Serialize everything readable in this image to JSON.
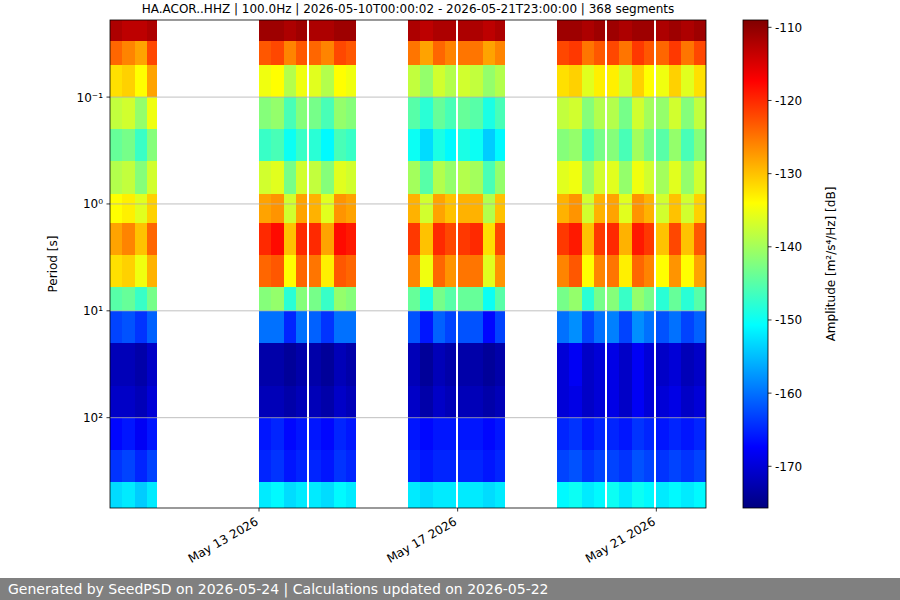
{
  "chart_data": {
    "type": "heatmap",
    "title": "HA.ACOR..HHZ | 100.0Hz | 2026-05-10T00:00:02 - 2026-05-21T23:00:00 | 368 segments",
    "y_label": "Period [s]",
    "footer": "Generated by SeedPSD on 2026-05-24 | Calculations updated on 2026-05-22",
    "log": "y",
    "grid": true,
    "xlim": [
      "2026-05-10T00:00",
      "2026-05-22T00:00"
    ],
    "xticks": [
      {
        "value": "2026-05-13T00:00",
        "label": "May 13 2026"
      },
      {
        "value": "2026-05-17T00:00",
        "label": "May 17 2026"
      },
      {
        "value": "2026-05-21T00:00",
        "label": "May 21 2026"
      }
    ],
    "ylim": [
      0.019,
      700
    ],
    "yticks": [
      {
        "value": 0.1,
        "label": "10⁻¹"
      },
      {
        "value": 1,
        "label": "10⁰"
      },
      {
        "value": 10,
        "label": "10¹"
      },
      {
        "value": 100,
        "label": "10²"
      }
    ],
    "x": [
      "2026-05-10T00:00",
      "2026-05-10T06:00",
      "2026-05-10T12:00",
      "2026-05-10T18:00",
      "2026-05-13T00:00",
      "2026-05-13T06:00",
      "2026-05-13T12:00",
      "2026-05-13T18:00",
      "2026-05-14T00:00",
      "2026-05-14T06:00",
      "2026-05-14T12:00",
      "2026-05-14T18:00",
      "2026-05-16T00:00",
      "2026-05-16T06:00",
      "2026-05-16T12:00",
      "2026-05-16T18:00",
      "2026-05-17T00:00",
      "2026-05-17T06:00",
      "2026-05-17T12:00",
      "2026-05-17T18:00",
      "2026-05-19T00:00",
      "2026-05-19T06:00",
      "2026-05-19T12:00",
      "2026-05-19T18:00",
      "2026-05-20T00:00",
      "2026-05-20T06:00",
      "2026-05-20T12:00",
      "2026-05-20T18:00",
      "2026-05-21T00:00",
      "2026-05-21T06:00",
      "2026-05-21T12:00",
      "2026-05-21T18:00"
    ],
    "x_end": [
      "2026-05-10T06:00",
      "2026-05-10T12:00",
      "2026-05-10T18:00",
      "2026-05-10T22:30",
      "2026-05-13T06:00",
      "2026-05-13T12:00",
      "2026-05-13T18:00",
      "2026-05-13T23:00",
      "2026-05-14T06:00",
      "2026-05-14T12:00",
      "2026-05-14T18:00",
      "2026-05-14T23:00",
      "2026-05-16T06:00",
      "2026-05-16T12:00",
      "2026-05-16T18:00",
      "2026-05-16T23:00",
      "2026-05-17T06:00",
      "2026-05-17T12:00",
      "2026-05-17T18:00",
      "2026-05-17T23:00",
      "2026-05-19T06:00",
      "2026-05-19T12:00",
      "2026-05-19T18:00",
      "2026-05-19T23:00",
      "2026-05-20T06:00",
      "2026-05-20T12:00",
      "2026-05-20T18:00",
      "2026-05-20T23:00",
      "2026-05-21T06:00",
      "2026-05-21T12:00",
      "2026-05-21T18:00",
      "2026-05-22T00:00"
    ],
    "y_edges": [
      0.019,
      0.03,
      0.05,
      0.1,
      0.2,
      0.4,
      0.8,
      1.5,
      3,
      6,
      10,
      20,
      50,
      100,
      200,
      400,
      700
    ],
    "z": [
      [
        -112,
        -113,
        -113,
        -112,
        -111,
        -111,
        -112,
        -111,
        -112,
        -112,
        -111,
        -111,
        -112,
        -113,
        -112,
        -112,
        -112,
        -112,
        -113,
        -112,
        -111,
        -111,
        -112,
        -111,
        -111,
        -112,
        -111,
        -111,
        -112,
        -111,
        -112,
        -111
      ],
      [
        -124,
        -126,
        -128,
        -122,
        -123,
        -122,
        -126,
        -123,
        -124,
        -126,
        -122,
        -123,
        -125,
        -128,
        -124,
        -126,
        -125,
        -125,
        -128,
        -126,
        -122,
        -121,
        -125,
        -123,
        -122,
        -125,
        -121,
        -123,
        -124,
        -121,
        -125,
        -122
      ],
      [
        -132,
        -131,
        -134,
        -128,
        -135,
        -134,
        -139,
        -135,
        -136,
        -139,
        -134,
        -135,
        -138,
        -141,
        -137,
        -139,
        -137,
        -138,
        -141,
        -139,
        -132,
        -131,
        -136,
        -133,
        -133,
        -137,
        -131,
        -134,
        -135,
        -131,
        -136,
        -132
      ],
      [
        -138,
        -137,
        -141,
        -135,
        -142,
        -141,
        -146,
        -142,
        -143,
        -146,
        -141,
        -142,
        -145,
        -148,
        -144,
        -146,
        -144,
        -145,
        -149,
        -146,
        -138,
        -137,
        -142,
        -139,
        -139,
        -143,
        -137,
        -140,
        -141,
        -137,
        -142,
        -138
      ],
      [
        -144,
        -143,
        -147,
        -142,
        -147,
        -146,
        -150,
        -147,
        -148,
        -151,
        -146,
        -147,
        -150,
        -153,
        -149,
        -151,
        -149,
        -150,
        -154,
        -151,
        -142,
        -141,
        -146,
        -143,
        -142,
        -146,
        -140,
        -143,
        -145,
        -141,
        -146,
        -142
      ],
      [
        -139,
        -138,
        -142,
        -137,
        -137,
        -136,
        -143,
        -137,
        -138,
        -142,
        -136,
        -137,
        -140,
        -145,
        -139,
        -141,
        -139,
        -140,
        -146,
        -141,
        -136,
        -135,
        -141,
        -137,
        -136,
        -141,
        -135,
        -137,
        -140,
        -136,
        -141,
        -137
      ],
      [
        -134,
        -133,
        -136,
        -131,
        -128,
        -127,
        -137,
        -128,
        -129,
        -136,
        -127,
        -128,
        -129,
        -137,
        -128,
        -130,
        -129,
        -129,
        -139,
        -130,
        -129,
        -127,
        -137,
        -129,
        -128,
        -136,
        -127,
        -129,
        -137,
        -130,
        -137,
        -131
      ],
      [
        -128,
        -126,
        -130,
        -124,
        -120,
        -118,
        -130,
        -120,
        -120,
        -128,
        -118,
        -119,
        -121,
        -130,
        -120,
        -122,
        -121,
        -120,
        -132,
        -122,
        -121,
        -119,
        -130,
        -121,
        -120,
        -129,
        -119,
        -121,
        -130,
        -122,
        -130,
        -123
      ],
      [
        -132,
        -131,
        -135,
        -129,
        -124,
        -123,
        -134,
        -124,
        -125,
        -133,
        -123,
        -124,
        -126,
        -135,
        -124,
        -127,
        -125,
        -125,
        -136,
        -127,
        -126,
        -123,
        -134,
        -126,
        -125,
        -133,
        -124,
        -126,
        -134,
        -127,
        -134,
        -128
      ],
      [
        -145,
        -144,
        -147,
        -143,
        -142,
        -141,
        -148,
        -142,
        -143,
        -147,
        -141,
        -142,
        -144,
        -149,
        -143,
        -145,
        -144,
        -144,
        -150,
        -145,
        -143,
        -141,
        -148,
        -143,
        -142,
        -147,
        -141,
        -143,
        -148,
        -144,
        -148,
        -145
      ],
      [
        -163,
        -162,
        -164,
        -161,
        -160,
        -160,
        -165,
        -160,
        -161,
        -164,
        -160,
        -160,
        -162,
        -166,
        -161,
        -163,
        -162,
        -162,
        -167,
        -163,
        -160,
        -158,
        -163,
        -160,
        -159,
        -163,
        -158,
        -160,
        -162,
        -160,
        -163,
        -161
      ],
      [
        -172,
        -172,
        -173,
        -171,
        -173,
        -173,
        -174,
        -173,
        -173,
        -174,
        -172,
        -173,
        -172,
        -174,
        -172,
        -173,
        -173,
        -173,
        -174,
        -173,
        -170,
        -168,
        -171,
        -170,
        -169,
        -171,
        -168,
        -170,
        -171,
        -170,
        -172,
        -171
      ],
      [
        -171,
        -171,
        -172,
        -170,
        -172,
        -172,
        -173,
        -172,
        -172,
        -173,
        -171,
        -172,
        -171,
        -173,
        -171,
        -172,
        -172,
        -172,
        -173,
        -172,
        -170,
        -169,
        -171,
        -170,
        -169,
        -171,
        -168,
        -170,
        -170,
        -169,
        -171,
        -170
      ],
      [
        -167,
        -166,
        -168,
        -166,
        -166,
        -165,
        -167,
        -166,
        -166,
        -167,
        -165,
        -166,
        -166,
        -167,
        -166,
        -166,
        -166,
        -166,
        -167,
        -166,
        -165,
        -164,
        -166,
        -165,
        -165,
        -166,
        -164,
        -165,
        -166,
        -165,
        -166,
        -165
      ],
      [
        -164,
        -163,
        -165,
        -163,
        -165,
        -164,
        -166,
        -165,
        -165,
        -166,
        -164,
        -165,
        -165,
        -166,
        -165,
        -165,
        -165,
        -165,
        -166,
        -165,
        -163,
        -162,
        -164,
        -163,
        -163,
        -164,
        -162,
        -163,
        -164,
        -163,
        -164,
        -163
      ],
      [
        -153,
        -152,
        -154,
        -152,
        -152,
        -151,
        -153,
        -152,
        -152,
        -153,
        -151,
        -152,
        -152,
        -153,
        -152,
        -152,
        -152,
        -152,
        -153,
        -152,
        -151,
        -150,
        -152,
        -151,
        -150,
        -152,
        -150,
        -151,
        -152,
        -151,
        -152,
        -151
      ]
    ],
    "colorbar": {
      "label": "Amplitude [m²/s⁴/Hz] [dB]",
      "lim": [
        -175.7,
        -109
      ],
      "ticks": [
        -170,
        -160,
        -150,
        -140,
        -130,
        -120,
        -110
      ]
    }
  }
}
